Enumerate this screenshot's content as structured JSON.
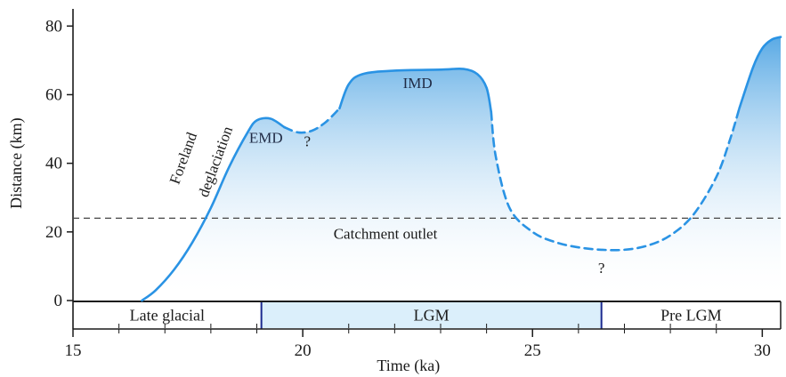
{
  "chart_data": {
    "type": "area",
    "title": "",
    "xlabel": "Time (ka)",
    "ylabel": "Distance (km)",
    "xlim": [
      15,
      30.4
    ],
    "ylim": [
      0,
      85
    ],
    "x_ticks": [
      15,
      20,
      25,
      30
    ],
    "x_minor_ticks": [
      16,
      17,
      18,
      19,
      21,
      22,
      23,
      24,
      26,
      27,
      28,
      29
    ],
    "y_ticks": [
      0,
      20,
      40,
      60,
      80
    ],
    "grid": false,
    "reference_line": {
      "y": 24,
      "label": "Catchment outlet",
      "style": "dashed"
    },
    "series": [
      {
        "style": "solid",
        "x": [
          16.5,
          16.8,
          17.2,
          17.6,
          18.0,
          18.4,
          18.8,
          19.0,
          19.3,
          19.6
        ],
        "y": [
          0,
          3,
          9,
          17,
          27,
          39,
          49,
          52.5,
          53,
          50.5
        ]
      },
      {
        "style": "dashed",
        "x": [
          19.6,
          19.9,
          20.2,
          20.5,
          20.8
        ],
        "y": [
          50.5,
          49,
          49.5,
          52,
          56
        ]
      },
      {
        "style": "solid",
        "x": [
          20.8,
          21.0,
          21.3,
          22.0,
          23.0,
          23.5,
          23.8,
          24.0,
          24.1
        ],
        "y": [
          56,
          63,
          66,
          67,
          67.3,
          67.5,
          66,
          62,
          55
        ]
      },
      {
        "style": "dashed",
        "x": [
          24.1,
          24.2,
          24.5,
          25.0,
          25.5,
          26.0,
          26.5,
          27.0,
          27.5,
          28.0,
          28.5,
          29.0,
          29.3,
          29.5
        ],
        "y": [
          55,
          42,
          27,
          20,
          17,
          15.5,
          14.8,
          14.8,
          16,
          19,
          25,
          36,
          47,
          56
        ]
      },
      {
        "style": "solid",
        "x": [
          29.5,
          29.8,
          30.0,
          30.2,
          30.4
        ],
        "y": [
          56,
          68,
          73.5,
          76,
          76.8
        ]
      }
    ],
    "annotations": [
      {
        "text": "Foreland",
        "x": 17.5,
        "y": 41
      },
      {
        "text": "deglaciation",
        "x": 18.2,
        "y": 40
      },
      {
        "text": "EMD",
        "x": 19.2,
        "y": 46
      },
      {
        "text": "?",
        "x": 20.1,
        "y": 45
      },
      {
        "text": "IMD",
        "x": 22.5,
        "y": 62
      },
      {
        "text": "?",
        "x": 26.5,
        "y": 8
      }
    ],
    "periods": [
      {
        "label": "Late glacial",
        "x_start": 15,
        "x_end": 19.1
      },
      {
        "label": "LGM",
        "x_start": 19.1,
        "x_end": 26.5
      },
      {
        "label": "Pre LGM",
        "x_start": 26.5,
        "x_end": 30.4
      }
    ],
    "colors": {
      "line": "#2a93e4",
      "fill_top": "#3d9be0",
      "fill_bottom": "#ffffff",
      "lgm_band": "#dbeffb",
      "lgm_border": "#1b2a8f",
      "axis": "#1a1a1a"
    }
  }
}
